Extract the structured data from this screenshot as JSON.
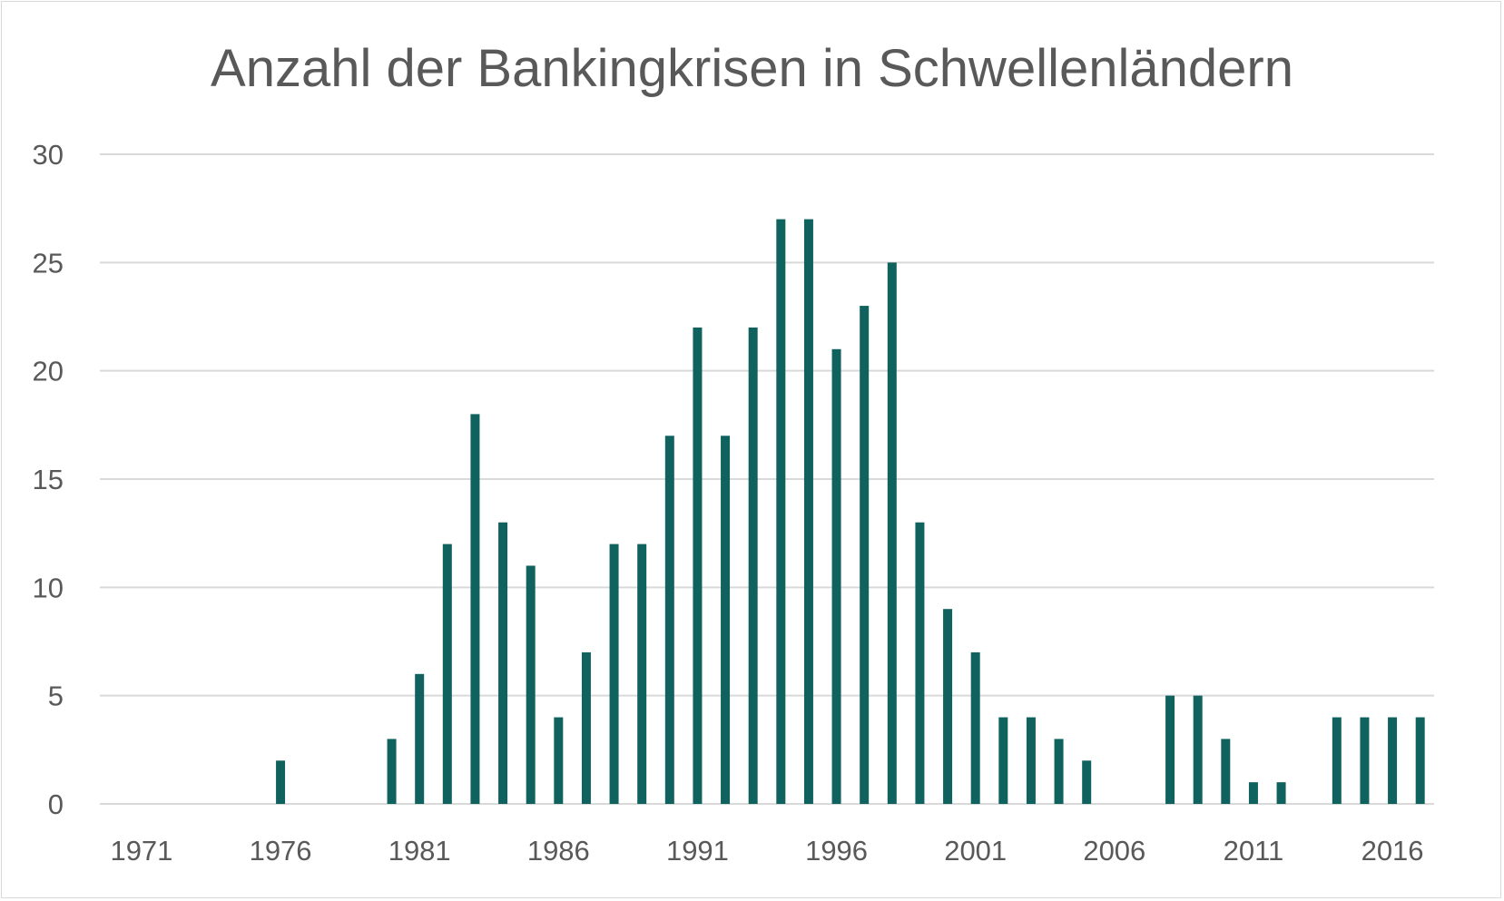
{
  "colors": {
    "bar": "#10625E",
    "grid": "#d9d9d9",
    "text": "#595959"
  },
  "chart_data": {
    "type": "bar",
    "title": "Anzahl der Bankingkrisen in Schwellenländern",
    "xlabel": "",
    "ylabel": "",
    "ylim": [
      0,
      30
    ],
    "yticks": [
      0,
      5,
      10,
      15,
      20,
      25,
      30
    ],
    "xtick_labels": [
      "1971",
      "1976",
      "1981",
      "1986",
      "1991",
      "1996",
      "2001",
      "2006",
      "2011",
      "2016"
    ],
    "grid": true,
    "categories": [
      1970,
      1971,
      1972,
      1973,
      1974,
      1975,
      1976,
      1977,
      1978,
      1979,
      1980,
      1981,
      1982,
      1983,
      1984,
      1985,
      1986,
      1987,
      1988,
      1989,
      1990,
      1991,
      1992,
      1993,
      1994,
      1995,
      1996,
      1997,
      1998,
      1999,
      2000,
      2001,
      2002,
      2003,
      2004,
      2005,
      2006,
      2007,
      2008,
      2009,
      2010,
      2011,
      2012,
      2013,
      2014,
      2015,
      2016,
      2017
    ],
    "values": [
      0,
      0,
      0,
      0,
      0,
      0,
      2,
      0,
      0,
      0,
      3,
      6,
      12,
      18,
      13,
      11,
      4,
      7,
      12,
      12,
      17,
      22,
      17,
      22,
      27,
      27,
      21,
      23,
      25,
      13,
      9,
      7,
      4,
      4,
      3,
      2,
      0,
      0,
      5,
      5,
      3,
      1,
      1,
      0,
      4,
      4,
      4,
      4
    ]
  }
}
